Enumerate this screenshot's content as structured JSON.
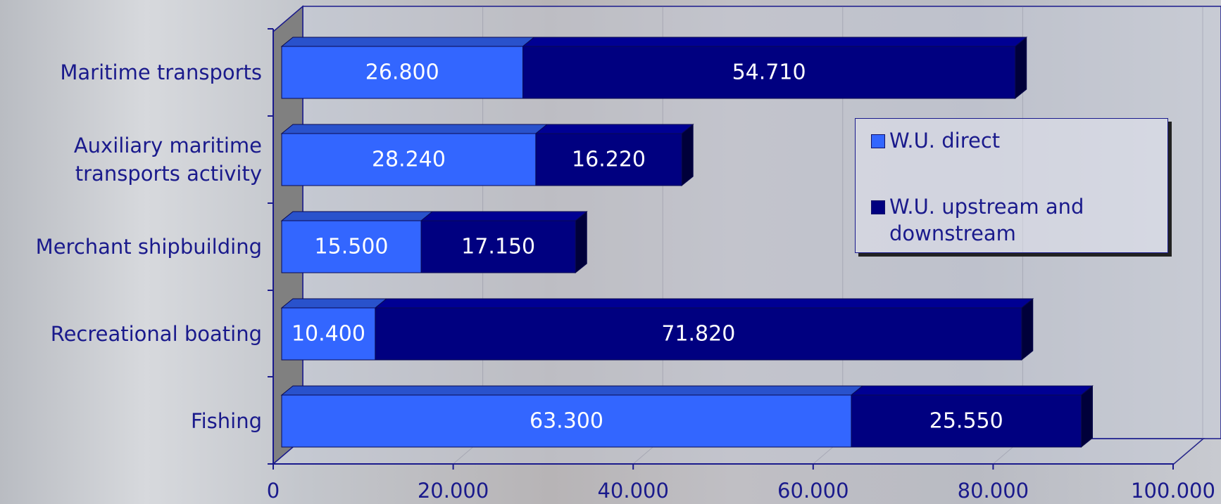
{
  "chart_data": {
    "type": "stacked-bar-horizontal-3d",
    "categories": [
      "Maritime transports",
      "Auxiliary maritime transports activity",
      "Merchant shipbuilding",
      "Recreational boating",
      "Fishing"
    ],
    "series": [
      {
        "name": "W.U. direct",
        "color": "#3366ff",
        "values": [
          26800,
          28240,
          15500,
          10400,
          63300
        ],
        "value_labels": [
          "26.800",
          "28.240",
          "15.500",
          "10.400",
          "63.300"
        ]
      },
      {
        "name": "W.U. upstream and downstream",
        "color": "#000080",
        "values": [
          54710,
          16220,
          17150,
          71820,
          25550
        ],
        "value_labels": [
          "54.710",
          "16.220",
          "17.150",
          "71.820",
          "25.550"
        ]
      }
    ],
    "xlim": [
      0,
      100000
    ],
    "xticks": [
      0,
      {
        "value": 20000,
        "label": "20.000"
      },
      {
        "value": 40000,
        "label": "40.000"
      },
      {
        "value": 60000,
        "label": "60.000"
      },
      {
        "value": 80000,
        "label": "80.000"
      },
      {
        "value": 100000,
        "label": "100.000"
      }
    ],
    "grid": true,
    "legend": "right"
  }
}
